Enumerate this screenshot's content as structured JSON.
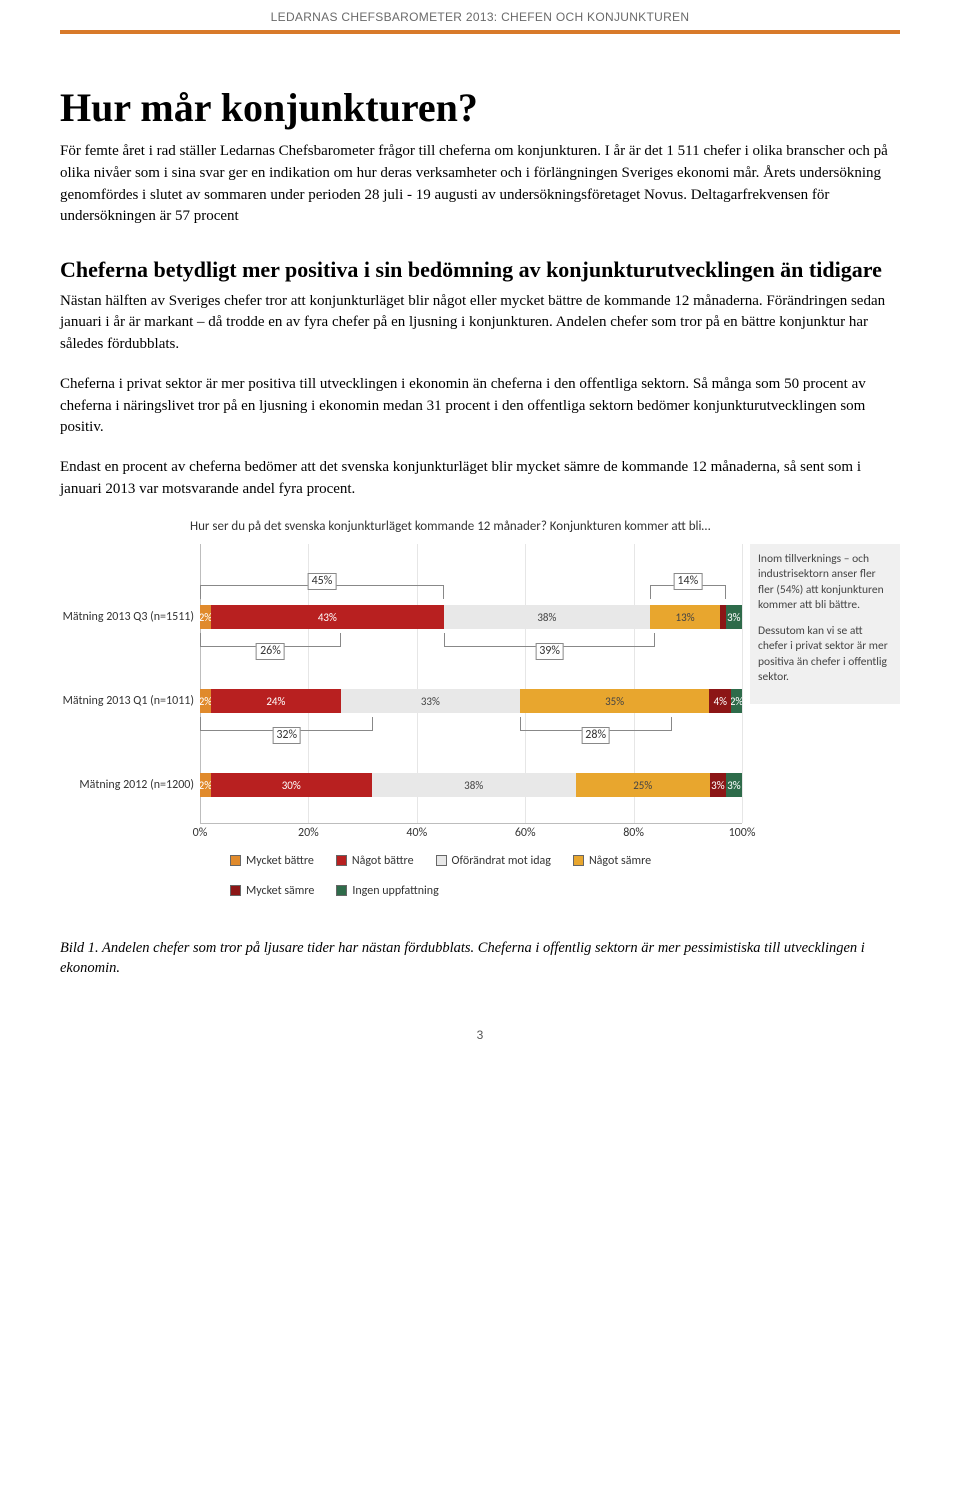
{
  "header": "LEDARNAS CHEFSBAROMETER 2013: CHEFEN OCH KONJUNKTUREN",
  "title": "Hur mår konjunkturen?",
  "intro": "För femte året i rad ställer Ledarnas Chefsbarometer frågor till cheferna om konjunkturen. I år är det 1 511 chefer i olika branscher och på olika nivåer som i sina svar ger en indikation om hur deras verksamheter och i förlängningen Sveriges ekonomi mår. Årets undersökning genomfördes i slutet av sommaren under perioden 28 juli - 19 augusti av undersökningsföretaget Novus. Deltagarfrekvensen för undersökningen är 57 procent",
  "subhead": "Cheferna betydligt mer positiva i sin bedömning av konjunkturutvecklingen än tidigare",
  "para2": "Nästan hälften av Sveriges chefer tror att konjunkturläget blir något eller mycket bättre de kommande 12 månaderna. Förändringen sedan januari i år är markant – då trodde en av fyra chefer på en ljusning i konjunkturen. Andelen chefer som tror på en bättre konjunktur har således fördubblats.",
  "para3": "Cheferna i privat sektor är mer positiva till utvecklingen i ekonomin än cheferna i den offentliga sektorn. Så många som 50 procent av cheferna i näringslivet tror på en ljusning i ekonomin medan 31 procent i den offentliga sektorn bedömer konjunkturutvecklingen som positiv.",
  "para4": "Endast en procent av cheferna bedömer att det svenska konjunkturläget blir mycket sämre de kommande 12 månaderna, så sent som i januari 2013 var motsvarande andel fyra procent.",
  "chart": {
    "title": "Hur ser du på det svenska konjunkturläget kommande 12 månader? Konjunkturen kommer att bli…",
    "colors": {
      "mycket_battre": "#e08a2c",
      "nagot_battre": "#b82020",
      "oforandrat": "#e8e8e8",
      "nagot_samre": "#e8a62e",
      "mycket_samre": "#8c1616",
      "ingen": "#2e6b4a",
      "grid": "#e6e6e6",
      "axis": "#bdbdbd"
    },
    "x_ticks": [
      "0%",
      "20%",
      "40%",
      "60%",
      "80%",
      "100%"
    ],
    "rows": [
      {
        "label": "Mätning 2013 Q3 (n=1511)",
        "top_pct": 22,
        "segments": [
          {
            "k": "mycket_battre",
            "v": 2,
            "lbl": "2%",
            "tone": "dark"
          },
          {
            "k": "nagot_battre",
            "v": 43,
            "lbl": "43%",
            "tone": "dark"
          },
          {
            "k": "oforandrat",
            "v": 38,
            "lbl": "38%",
            "tone": "light"
          },
          {
            "k": "nagot_samre",
            "v": 13,
            "lbl": "13%",
            "tone": "light"
          },
          {
            "k": "mycket_samre",
            "v": 1,
            "lbl": "1%",
            "tone": "dark"
          },
          {
            "k": "ingen",
            "v": 3,
            "lbl": "3%",
            "tone": "dark"
          }
        ],
        "call_above": [
          {
            "from": 0,
            "to": 45,
            "lbl": "45%"
          },
          {
            "from": 83,
            "to": 97,
            "lbl": "14%"
          }
        ],
        "call_below": [
          {
            "from": 0,
            "to": 26,
            "lbl": "26%"
          },
          {
            "from": 45,
            "to": 84,
            "lbl": "39%"
          }
        ]
      },
      {
        "label": "Mätning 2013 Q1 (n=1011)",
        "top_pct": 52,
        "segments": [
          {
            "k": "mycket_battre",
            "v": 2,
            "lbl": "2%",
            "tone": "dark"
          },
          {
            "k": "nagot_battre",
            "v": 24,
            "lbl": "24%",
            "tone": "dark"
          },
          {
            "k": "oforandrat",
            "v": 33,
            "lbl": "33%",
            "tone": "light"
          },
          {
            "k": "nagot_samre",
            "v": 35,
            "lbl": "35%",
            "tone": "light"
          },
          {
            "k": "mycket_samre",
            "v": 4,
            "lbl": "4%",
            "tone": "dark"
          },
          {
            "k": "ingen",
            "v": 2,
            "lbl": "2%",
            "tone": "dark"
          }
        ],
        "call_below": [
          {
            "from": 0,
            "to": 32,
            "lbl": "32%"
          },
          {
            "from": 59,
            "to": 87,
            "lbl": "28%"
          }
        ]
      },
      {
        "label": "Mätning 2012 (n=1200)",
        "top_pct": 82,
        "segments": [
          {
            "k": "mycket_battre",
            "v": 2,
            "lbl": "2%",
            "tone": "dark"
          },
          {
            "k": "nagot_battre",
            "v": 30,
            "lbl": "30%",
            "tone": "dark"
          },
          {
            "k": "oforandrat",
            "v": 38,
            "lbl": "38%",
            "tone": "light"
          },
          {
            "k": "nagot_samre",
            "v": 25,
            "lbl": "25%",
            "tone": "light"
          },
          {
            "k": "mycket_samre",
            "v": 3,
            "lbl": "3%",
            "tone": "dark"
          },
          {
            "k": "ingen",
            "v": 3,
            "lbl": "3%",
            "tone": "dark"
          }
        ]
      }
    ],
    "legend": [
      {
        "k": "mycket_battre",
        "lbl": "Mycket bättre"
      },
      {
        "k": "nagot_battre",
        "lbl": "Något bättre"
      },
      {
        "k": "oforandrat",
        "lbl": "Oförändrat mot idag"
      },
      {
        "k": "nagot_samre",
        "lbl": "Något sämre"
      },
      {
        "k": "mycket_samre",
        "lbl": "Mycket sämre"
      },
      {
        "k": "ingen",
        "lbl": "Ingen uppfattning"
      }
    ],
    "note1": "Inom tillverknings – och industrisektorn anser fler fler (54%) att konjunkturen kommer att bli bättre.",
    "note2": "Dessutom kan vi se att chefer i privat sektor är mer positiva än chefer i offentlig sektor."
  },
  "caption": "Bild 1. Andelen chefer som tror på ljusare tider har nästan fördubblats. Cheferna i offentlig sektorn är mer pessimistiska till utvecklingen i ekonomin.",
  "pagenum": "3"
}
